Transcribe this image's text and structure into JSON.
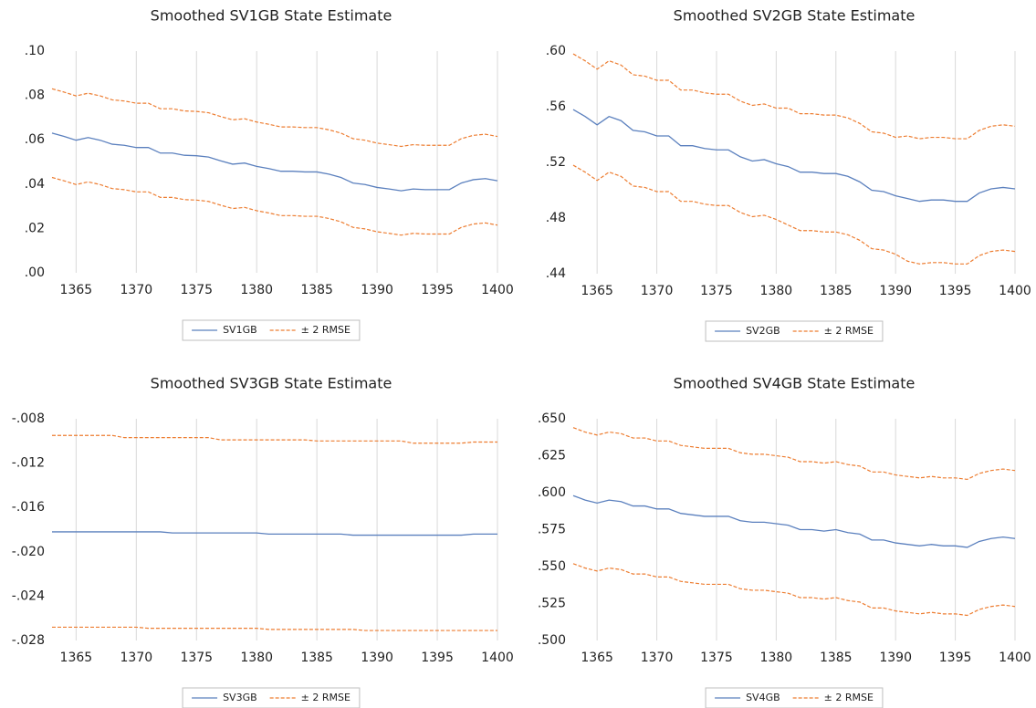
{
  "chart_data": [
    {
      "type": "line",
      "title": "Smoothed SV1GB State Estimate",
      "x": [
        1363,
        1364,
        1365,
        1366,
        1367,
        1368,
        1369,
        1370,
        1371,
        1372,
        1373,
        1374,
        1375,
        1376,
        1377,
        1378,
        1379,
        1380,
        1381,
        1382,
        1383,
        1384,
        1385,
        1386,
        1387,
        1388,
        1389,
        1390,
        1391,
        1392,
        1393,
        1394,
        1395,
        1396,
        1397,
        1398,
        1399,
        1400
      ],
      "xlim": [
        1363,
        1400
      ],
      "xticks": [
        1365,
        1370,
        1375,
        1380,
        1385,
        1390,
        1395,
        1400
      ],
      "ylim": [
        0,
        0.1
      ],
      "yticks": [
        {
          "value": 0,
          "label": ".00"
        },
        {
          "value": 0.02,
          "label": ".02"
        },
        {
          "value": 0.04,
          "label": ".04"
        },
        {
          "value": 0.06,
          "label": ".06"
        },
        {
          "value": 0.08,
          "label": ".08"
        },
        {
          "value": 0.1,
          "label": ".10"
        }
      ],
      "grid": "x",
      "legend": "bottom",
      "series": [
        {
          "name": "SV1GB",
          "color": "#5b80be",
          "dash": false,
          "values": [
            0.063,
            0.0615,
            0.0598,
            0.061,
            0.0598,
            0.058,
            0.0575,
            0.0565,
            0.0565,
            0.054,
            0.054,
            0.053,
            0.0528,
            0.0522,
            0.0505,
            0.049,
            0.0495,
            0.048,
            0.047,
            0.0458,
            0.0458,
            0.0455,
            0.0455,
            0.0445,
            0.043,
            0.0405,
            0.0398,
            0.0385,
            0.0378,
            0.037,
            0.0378,
            0.0375,
            0.0375,
            0.0375,
            0.0405,
            0.042,
            0.0425,
            0.0415
          ]
        },
        {
          "name": "± 2 RMSE",
          "color": "#ed7d31",
          "dash": true,
          "values": [
            0.083,
            0.0815,
            0.0798,
            0.081,
            0.0798,
            0.078,
            0.0775,
            0.0765,
            0.0765,
            0.074,
            0.074,
            0.073,
            0.0728,
            0.0722,
            0.0705,
            0.069,
            0.0695,
            0.068,
            0.067,
            0.0658,
            0.0658,
            0.0655,
            0.0655,
            0.0645,
            0.063,
            0.0605,
            0.0598,
            0.0585,
            0.0578,
            0.057,
            0.0578,
            0.0575,
            0.0575,
            0.0575,
            0.0605,
            0.062,
            0.0625,
            0.0615
          ]
        },
        {
          "color": "#ed7d31",
          "dash": true,
          "values": [
            0.043,
            0.0415,
            0.0398,
            0.041,
            0.0398,
            0.038,
            0.0375,
            0.0365,
            0.0365,
            0.034,
            0.034,
            0.033,
            0.0328,
            0.0322,
            0.0305,
            0.029,
            0.0295,
            0.028,
            0.027,
            0.0258,
            0.0258,
            0.0255,
            0.0255,
            0.0245,
            0.023,
            0.0205,
            0.0198,
            0.0185,
            0.0178,
            0.017,
            0.0178,
            0.0175,
            0.0175,
            0.0175,
            0.0205,
            0.022,
            0.0225,
            0.0215
          ]
        }
      ]
    },
    {
      "type": "line",
      "title": "Smoothed SV2GB State Estimate",
      "x": [
        1363,
        1364,
        1365,
        1366,
        1367,
        1368,
        1369,
        1370,
        1371,
        1372,
        1373,
        1374,
        1375,
        1376,
        1377,
        1378,
        1379,
        1380,
        1381,
        1382,
        1383,
        1384,
        1385,
        1386,
        1387,
        1388,
        1389,
        1390,
        1391,
        1392,
        1393,
        1394,
        1395,
        1396,
        1397,
        1398,
        1399,
        1400
      ],
      "xlim": [
        1363,
        1400
      ],
      "xticks": [
        1365,
        1370,
        1375,
        1380,
        1385,
        1390,
        1395,
        1400
      ],
      "ylim": [
        0.44,
        0.6
      ],
      "yticks": [
        {
          "value": 0.44,
          "label": ".44"
        },
        {
          "value": 0.48,
          "label": ".48"
        },
        {
          "value": 0.52,
          "label": ".52"
        },
        {
          "value": 0.56,
          "label": ".56"
        },
        {
          "value": 0.6,
          "label": ".60"
        }
      ],
      "grid": "x",
      "legend": "bottom",
      "series": [
        {
          "name": "SV2GB",
          "color": "#5b80be",
          "dash": false,
          "values": [
            0.558,
            0.553,
            0.547,
            0.553,
            0.55,
            0.543,
            0.542,
            0.539,
            0.539,
            0.532,
            0.532,
            0.53,
            0.529,
            0.529,
            0.524,
            0.521,
            0.522,
            0.519,
            0.517,
            0.513,
            0.513,
            0.512,
            0.512,
            0.51,
            0.506,
            0.5,
            0.499,
            0.496,
            0.494,
            0.492,
            0.493,
            0.493,
            0.492,
            0.492,
            0.498,
            0.501,
            0.502,
            0.501
          ]
        },
        {
          "name": "± 2 RMSE",
          "color": "#ed7d31",
          "dash": true,
          "values": [
            0.598,
            0.593,
            0.587,
            0.593,
            0.59,
            0.583,
            0.582,
            0.579,
            0.579,
            0.572,
            0.572,
            0.57,
            0.569,
            0.569,
            0.564,
            0.561,
            0.562,
            0.559,
            0.559,
            0.555,
            0.555,
            0.554,
            0.554,
            0.552,
            0.548,
            0.542,
            0.541,
            0.538,
            0.539,
            0.537,
            0.538,
            0.538,
            0.537,
            0.537,
            0.543,
            0.546,
            0.547,
            0.546
          ]
        },
        {
          "color": "#ed7d31",
          "dash": true,
          "values": [
            0.518,
            0.513,
            0.507,
            0.513,
            0.51,
            0.503,
            0.502,
            0.499,
            0.499,
            0.492,
            0.492,
            0.49,
            0.489,
            0.489,
            0.484,
            0.481,
            0.482,
            0.479,
            0.475,
            0.471,
            0.471,
            0.47,
            0.47,
            0.468,
            0.464,
            0.458,
            0.457,
            0.454,
            0.449,
            0.447,
            0.448,
            0.448,
            0.447,
            0.447,
            0.453,
            0.456,
            0.457,
            0.456
          ]
        }
      ]
    },
    {
      "type": "line",
      "title": "Smoothed SV3GB State Estimate",
      "x": [
        1363,
        1364,
        1365,
        1366,
        1367,
        1368,
        1369,
        1370,
        1371,
        1372,
        1373,
        1374,
        1375,
        1376,
        1377,
        1378,
        1379,
        1380,
        1381,
        1382,
        1383,
        1384,
        1385,
        1386,
        1387,
        1388,
        1389,
        1390,
        1391,
        1392,
        1393,
        1394,
        1395,
        1396,
        1397,
        1398,
        1399,
        1400
      ],
      "xlim": [
        1363,
        1400
      ],
      "xticks": [
        1365,
        1370,
        1375,
        1380,
        1385,
        1390,
        1395,
        1400
      ],
      "ylim": [
        -0.028,
        -0.008
      ],
      "yticks": [
        {
          "value": -0.028,
          "label": "-.028"
        },
        {
          "value": -0.024,
          "label": "-.024"
        },
        {
          "value": -0.02,
          "label": "-.020"
        },
        {
          "value": -0.016,
          "label": "-.016"
        },
        {
          "value": -0.012,
          "label": "-.012"
        },
        {
          "value": -0.008,
          "label": "-.008"
        }
      ],
      "grid": "x",
      "legend": "bottom",
      "series": [
        {
          "name": "SV3GB",
          "color": "#5b80be",
          "dash": false,
          "values": [
            -0.0182,
            -0.0182,
            -0.0182,
            -0.0182,
            -0.0182,
            -0.0182,
            -0.0182,
            -0.0182,
            -0.0182,
            -0.0182,
            -0.0183,
            -0.0183,
            -0.0183,
            -0.0183,
            -0.0183,
            -0.0183,
            -0.0183,
            -0.0183,
            -0.0184,
            -0.0184,
            -0.0184,
            -0.0184,
            -0.0184,
            -0.0184,
            -0.0184,
            -0.0185,
            -0.0185,
            -0.0185,
            -0.0185,
            -0.0185,
            -0.0185,
            -0.0185,
            -0.0185,
            -0.0185,
            -0.0185,
            -0.0184,
            -0.0184,
            -0.0184
          ]
        },
        {
          "name": "± 2 RMSE",
          "color": "#ed7d31",
          "dash": true,
          "values": [
            -0.0095,
            -0.0095,
            -0.0095,
            -0.0095,
            -0.0095,
            -0.0095,
            -0.0097,
            -0.0097,
            -0.0097,
            -0.0097,
            -0.0097,
            -0.0097,
            -0.0097,
            -0.0097,
            -0.0099,
            -0.0099,
            -0.0099,
            -0.0099,
            -0.0099,
            -0.0099,
            -0.0099,
            -0.0099,
            -0.01,
            -0.01,
            -0.01,
            -0.01,
            -0.01,
            -0.01,
            -0.01,
            -0.01,
            -0.0102,
            -0.0102,
            -0.0102,
            -0.0102,
            -0.0102,
            -0.0101,
            -0.0101,
            -0.0101
          ]
        },
        {
          "color": "#ed7d31",
          "dash": true,
          "values": [
            -0.0268,
            -0.0268,
            -0.0268,
            -0.0268,
            -0.0268,
            -0.0268,
            -0.0268,
            -0.0268,
            -0.0269,
            -0.0269,
            -0.0269,
            -0.0269,
            -0.0269,
            -0.0269,
            -0.0269,
            -0.0269,
            -0.0269,
            -0.0269,
            -0.027,
            -0.027,
            -0.027,
            -0.027,
            -0.027,
            -0.027,
            -0.027,
            -0.027,
            -0.0271,
            -0.0271,
            -0.0271,
            -0.0271,
            -0.0271,
            -0.0271,
            -0.0271,
            -0.0271,
            -0.0271,
            -0.0271,
            -0.0271,
            -0.0271
          ]
        }
      ]
    },
    {
      "type": "line",
      "title": "Smoothed SV4GB State Estimate",
      "x": [
        1363,
        1364,
        1365,
        1366,
        1367,
        1368,
        1369,
        1370,
        1371,
        1372,
        1373,
        1374,
        1375,
        1376,
        1377,
        1378,
        1379,
        1380,
        1381,
        1382,
        1383,
        1384,
        1385,
        1386,
        1387,
        1388,
        1389,
        1390,
        1391,
        1392,
        1393,
        1394,
        1395,
        1396,
        1397,
        1398,
        1399,
        1400
      ],
      "xlim": [
        1363,
        1400
      ],
      "xticks": [
        1365,
        1370,
        1375,
        1380,
        1385,
        1390,
        1395,
        1400
      ],
      "ylim": [
        0.5,
        0.65
      ],
      "yticks": [
        {
          "value": 0.5,
          "label": ".500"
        },
        {
          "value": 0.525,
          "label": ".525"
        },
        {
          "value": 0.55,
          "label": ".550"
        },
        {
          "value": 0.575,
          "label": ".575"
        },
        {
          "value": 0.6,
          "label": ".600"
        },
        {
          "value": 0.625,
          "label": ".625"
        },
        {
          "value": 0.65,
          "label": ".650"
        }
      ],
      "grid": "x",
      "legend": "bottom",
      "series": [
        {
          "name": "SV4GB",
          "color": "#5b80be",
          "dash": false,
          "values": [
            0.598,
            0.595,
            0.593,
            0.595,
            0.594,
            0.591,
            0.591,
            0.589,
            0.589,
            0.586,
            0.585,
            0.584,
            0.584,
            0.584,
            0.581,
            0.58,
            0.58,
            0.579,
            0.578,
            0.575,
            0.575,
            0.574,
            0.575,
            0.573,
            0.572,
            0.568,
            0.568,
            0.566,
            0.565,
            0.564,
            0.565,
            0.564,
            0.564,
            0.563,
            0.567,
            0.569,
            0.57,
            0.569
          ]
        },
        {
          "name": "± 2 RMSE",
          "color": "#ed7d31",
          "dash": true,
          "values": [
            0.644,
            0.641,
            0.639,
            0.641,
            0.64,
            0.637,
            0.637,
            0.635,
            0.635,
            0.632,
            0.631,
            0.63,
            0.63,
            0.63,
            0.627,
            0.626,
            0.626,
            0.625,
            0.624,
            0.621,
            0.621,
            0.62,
            0.621,
            0.619,
            0.618,
            0.614,
            0.614,
            0.612,
            0.611,
            0.61,
            0.611,
            0.61,
            0.61,
            0.609,
            0.613,
            0.615,
            0.616,
            0.615
          ]
        },
        {
          "color": "#ed7d31",
          "dash": true,
          "values": [
            0.552,
            0.549,
            0.547,
            0.549,
            0.548,
            0.545,
            0.545,
            0.543,
            0.543,
            0.54,
            0.539,
            0.538,
            0.538,
            0.538,
            0.535,
            0.534,
            0.534,
            0.533,
            0.532,
            0.529,
            0.529,
            0.528,
            0.529,
            0.527,
            0.526,
            0.522,
            0.522,
            0.52,
            0.519,
            0.518,
            0.519,
            0.518,
            0.518,
            0.517,
            0.521,
            0.523,
            0.524,
            0.523
          ]
        }
      ]
    }
  ]
}
